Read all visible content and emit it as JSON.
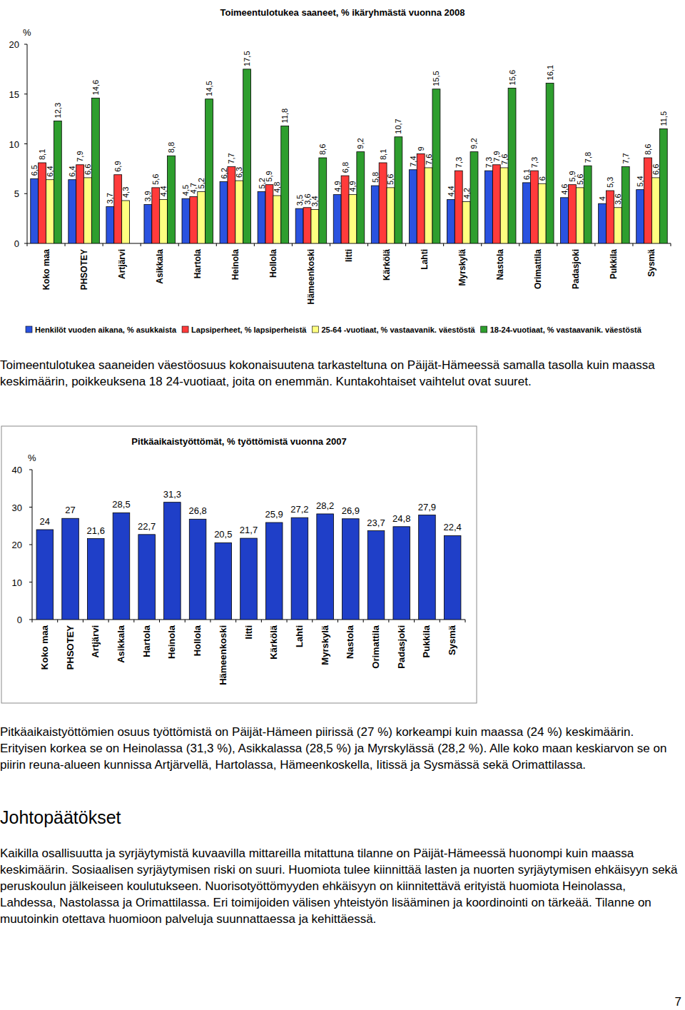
{
  "chart_data": [
    {
      "type": "bar",
      "title": "Toimeentulotukea saaneet, % ikäryhmästä vuonna 2008",
      "ylabel": "%",
      "categories": [
        "Koko maa",
        "PHSOTEY",
        "Artjärvi",
        "Asikkala",
        "Hartola",
        "Heinola",
        "Hollola",
        "Hämeenkoski",
        "Iitti",
        "Kärkölä",
        "Lahti",
        "Myrskylä",
        "Nastola",
        "Orimattila",
        "Padasjoki",
        "Pukkila",
        "Sysmä"
      ],
      "series": [
        {
          "name": "Henkilöt vuoden aikana, % asukkaista",
          "color": "#2a52e0",
          "values": [
            6.5,
            6.4,
            3.7,
            3.9,
            4.5,
            6.2,
            5.2,
            3.5,
            4.9,
            5.8,
            7.4,
            4.4,
            7.3,
            6.1,
            4.6,
            4,
            5.4
          ],
          "value_labels": [
            "6,5",
            "6,4",
            "3,7",
            "3,9",
            "4,5",
            "6,2",
            "5,2",
            "3,5",
            "4,9",
            "5,8",
            "7,4",
            "4,4",
            "7,3",
            "6,1",
            "4,6",
            "4",
            "5,4"
          ]
        },
        {
          "name": "Lapsiperheet, % lapsiperheistä",
          "color": "#ff3b3b",
          "values": [
            8.1,
            7.9,
            6.9,
            5.6,
            4.7,
            7.7,
            5.9,
            3.6,
            6.8,
            8.1,
            9,
            7.3,
            7.9,
            7.3,
            5.9,
            5.3,
            8.6
          ],
          "value_labels": [
            "8,1",
            "7,9",
            "6,9",
            "5,6",
            "4,7",
            "7,7",
            "5,9",
            "3,6",
            "6,8",
            "8,1",
            "9",
            "7,3",
            "7,9",
            "7,3",
            "5,9",
            "5,3",
            "8,6"
          ]
        },
        {
          "name": "25-64 -vuotiaat, % vastaavanik. väestöstä",
          "color": "#ffff80",
          "values": [
            6.4,
            6.6,
            4.3,
            4.4,
            5.2,
            6.3,
            4.8,
            3.4,
            4.9,
            5.6,
            7.6,
            4.2,
            7.6,
            6,
            5.6,
            3.6,
            6.6
          ],
          "value_labels": [
            "6,4",
            "6,6",
            "4,3",
            "4,4",
            "5,2",
            "6,3",
            "4,8",
            "3,4",
            "4,9",
            "5,6",
            "7,6",
            "4,2",
            "7,6",
            "6",
            "5,6",
            "3,6",
            "6,6"
          ]
        },
        {
          "name": "18-24-vuotiaat, % vastaavanik. väestöstä",
          "color": "#2e9e2e",
          "values": [
            12.3,
            14.6,
            null,
            8.8,
            14.5,
            17.5,
            11.8,
            8.6,
            9.2,
            10.7,
            15.5,
            9.2,
            15.6,
            16.1,
            7.8,
            7.7,
            11.5
          ],
          "value_labels": [
            "12,3",
            "14,6",
            null,
            "8,8",
            "14,5",
            "17,5",
            "11,8",
            "8,6",
            "9,2",
            "10,7",
            "15,5",
            "9,2",
            "15,6",
            "16,1",
            "7,8",
            "7,7",
            "11,5"
          ]
        }
      ],
      "ylim": [
        0,
        20
      ],
      "yticks": [
        0,
        5,
        10,
        15,
        20
      ],
      "grid": false,
      "legend": "bottom",
      "data_labels": true
    },
    {
      "type": "bar",
      "title": "Pitkäaikaistyöttömät, % työttömistä vuonna 2007",
      "ylabel": "%",
      "categories": [
        "Koko maa",
        "PHSOTEY",
        "Artjärvi",
        "Asikkala",
        "Hartola",
        "Heinola",
        "Hollola",
        "Hämeenkoski",
        "Iitti",
        "Kärkölä",
        "Lahti",
        "Myrskylä",
        "Nastola",
        "Orimattila",
        "Padasjoki",
        "Pukkila",
        "Sysmä"
      ],
      "series": [
        {
          "name": null,
          "color": "#1f3fc8",
          "values": [
            24,
            27,
            21.6,
            28.5,
            22.7,
            31.3,
            26.8,
            20.5,
            21.7,
            25.9,
            27.2,
            28.2,
            26.9,
            23.7,
            24.8,
            27.9,
            22.4
          ],
          "value_labels": [
            "24",
            "27",
            "21,6",
            "28,5",
            "22,7",
            "31,3",
            "26,8",
            "20,5",
            "21,7",
            "25,9",
            "27,2",
            "28,2",
            "26,9",
            "23,7",
            "24,8",
            "27,9",
            "22,4"
          ]
        }
      ],
      "ylim": [
        0,
        40
      ],
      "yticks": [
        0,
        10,
        20,
        30,
        40
      ],
      "grid": false,
      "data_labels": true
    }
  ],
  "paragraphs": [
    "Toimeentulotukea saaneiden väestöosuus kokonaisuutena tarkasteltuna on Päijät-Hämeessä samalla tasolla kuin maassa keskimäärin, poikkeuksena 18 24-vuotiaat, joita on enemmän. Kuntakohtaiset vaihtelut ovat suuret.",
    "Pitkäaikaistyöttömien osuus työttömistä on Päijät-Hämeen piirissä (27 %) korkeampi kuin maassa (24 %) keskimäärin. Erityisen korkea se on Heinolassa (31,3 %), Asikkalassa (28,5 %) ja Myrskylässä (28,2 %). Alle koko maan keskiarvon se on piirin reuna-alueen kunnissa Artjärvellä, Hartolassa, Hämeenkoskella, Iitissä ja Sysmässä sekä Orimattilassa.",
    "Kaikilla osallisuutta ja syrjäytymistä kuvaavilla mittareilla mitattuna tilanne on Päijät-Hämeessä huonompi kuin maassa keskimäärin. Sosiaalisen syrjäytymisen riski on suuri. Huomiota tulee kiinnittää lasten ja nuorten syrjäytymisen ehkäisyyn sekä peruskoulun jälkeiseen koulutukseen. Nuorisotyöttömyyden ehkäisyyn on kiinnitettävä erityistä huomiota Heinolassa, Lahdessa, Nastolassa ja Orimattilassa. Eri toimijoiden välisen yhteistyön lisääminen ja koordinointi on tärkeää. Tilanne on muutoinkin otettava huomioon palveluja suunnattaessa ja kehittäessä."
  ],
  "heading": "Johtopäätökset",
  "page_number": "7"
}
